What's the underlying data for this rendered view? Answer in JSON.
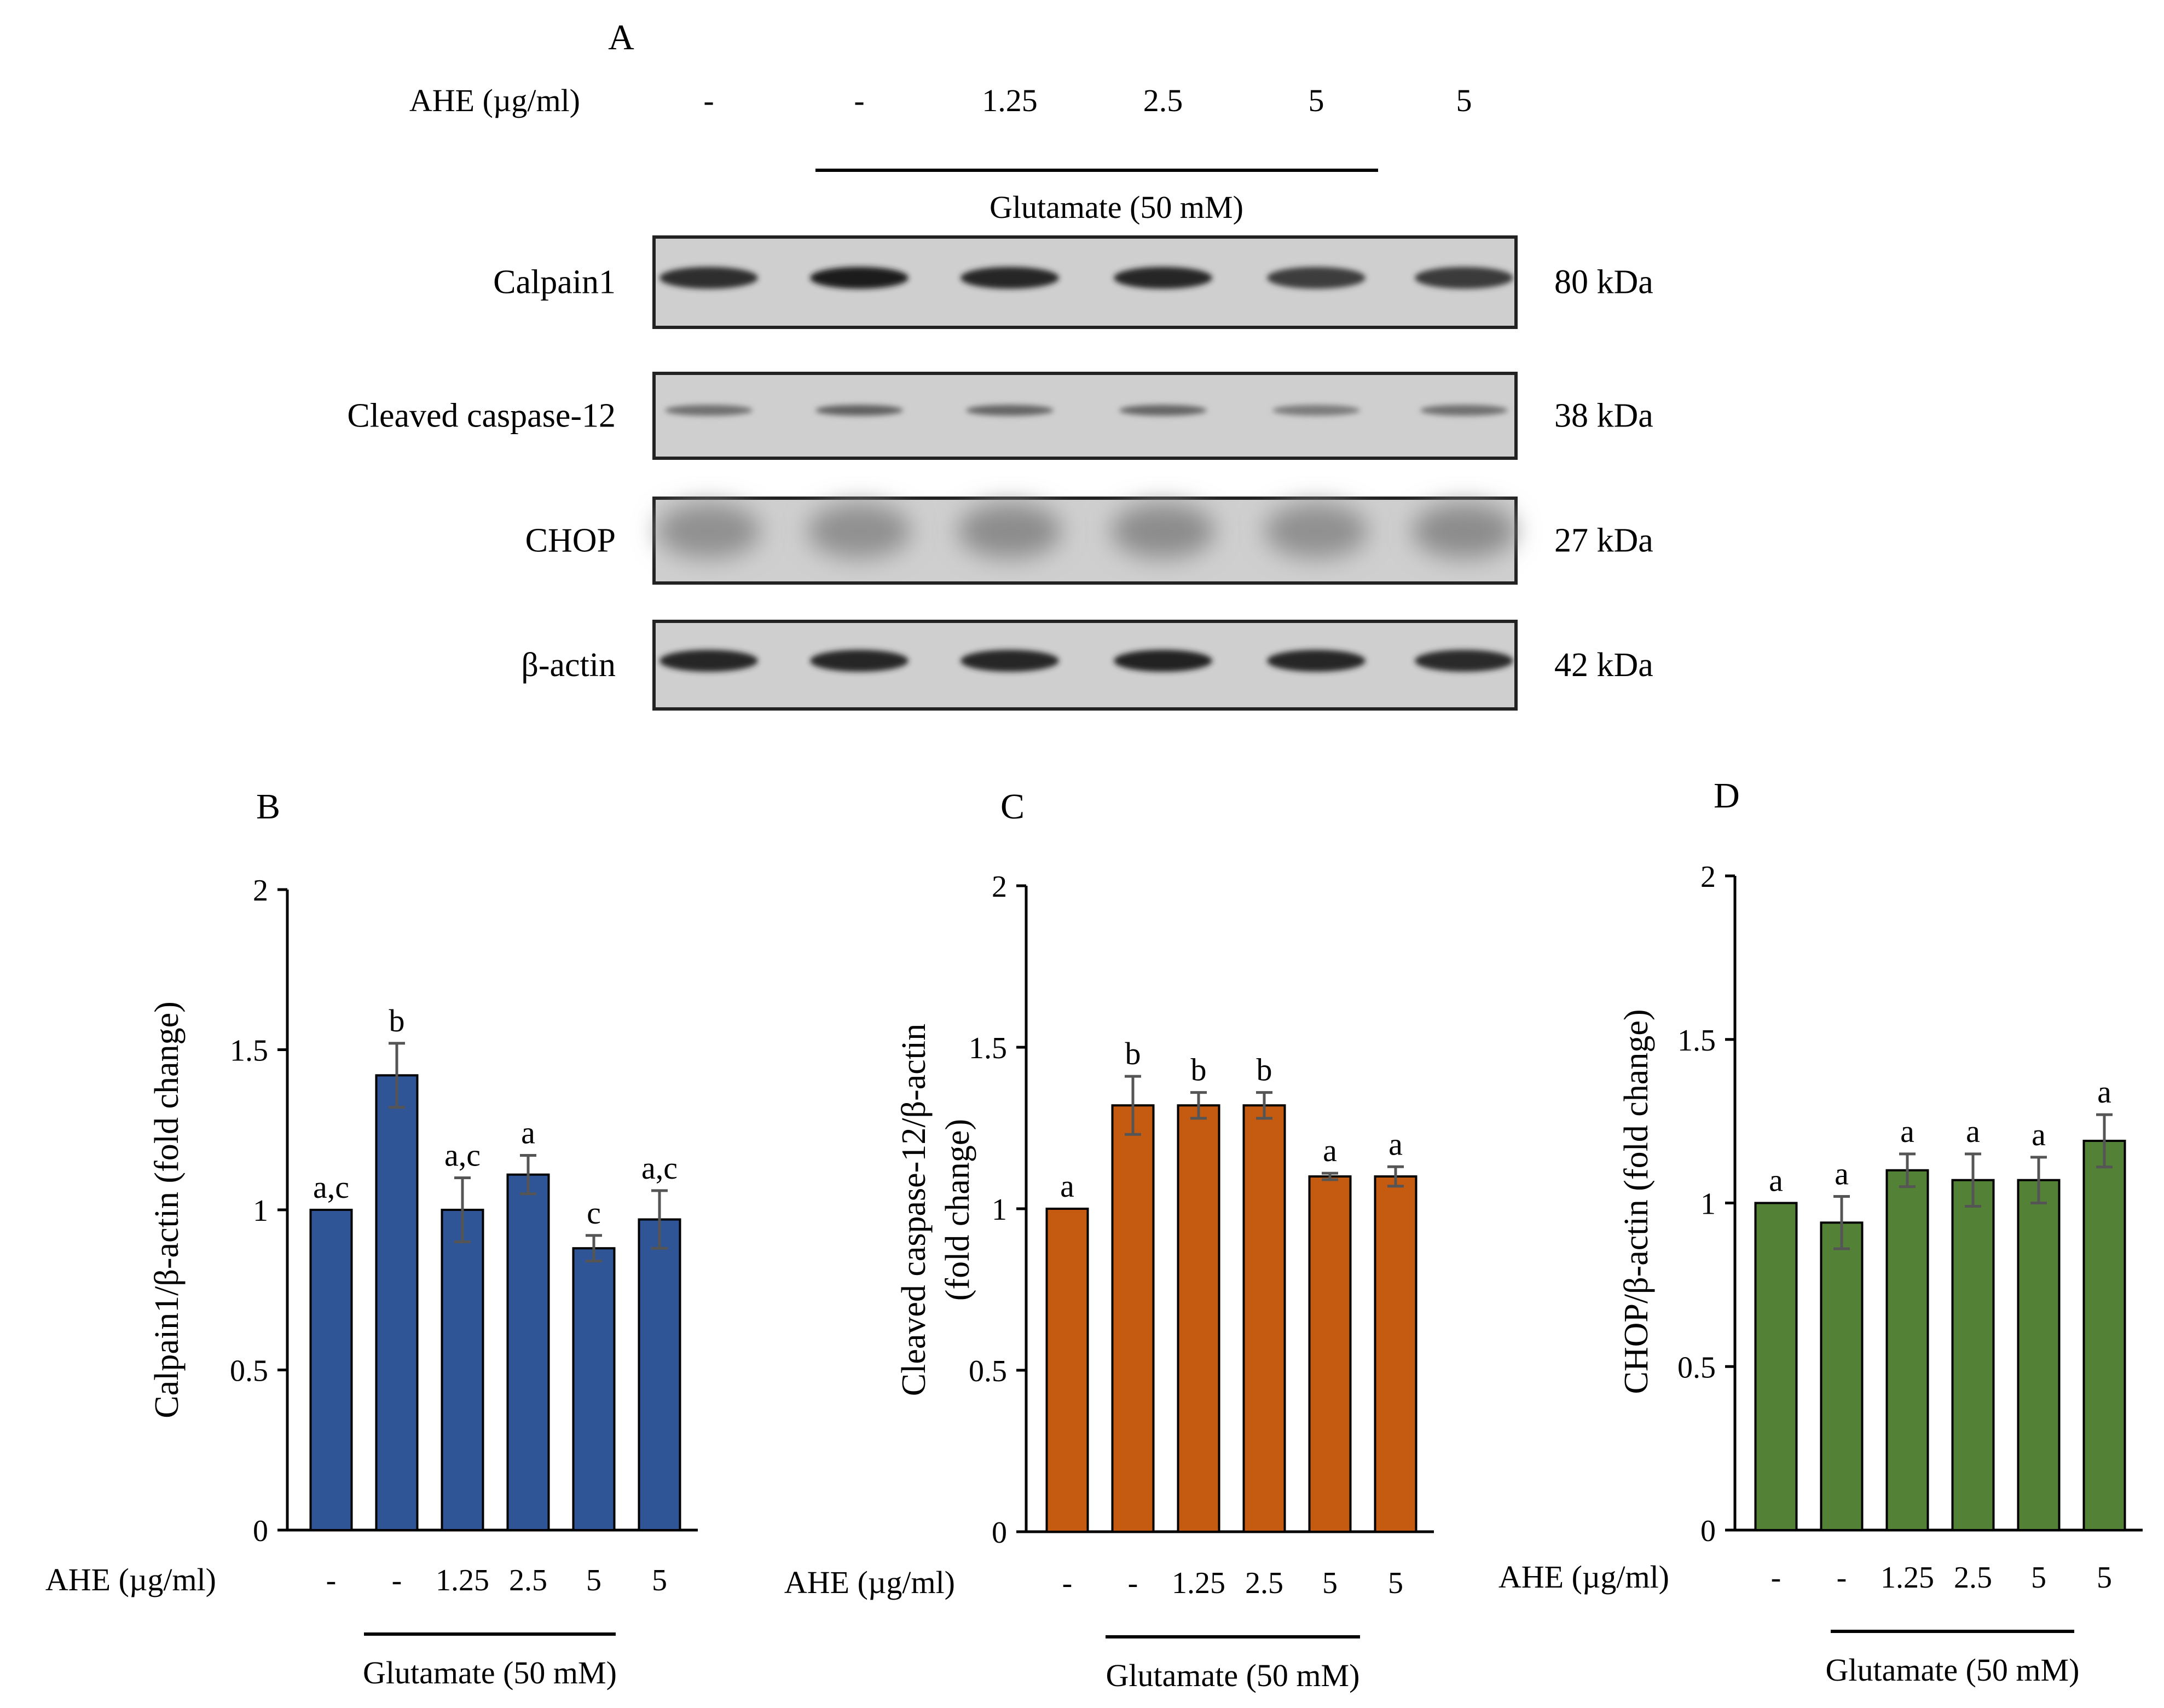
{
  "panel_a": {
    "letter": "A",
    "treatment_label": "AHE (µg/ml)",
    "doses": [
      "-",
      "-",
      "1.25",
      "2.5",
      "5",
      "5"
    ],
    "group_label": "Glutamate (50 mM)",
    "blots": [
      {
        "protein": "Calpain1",
        "size": "80 kDa",
        "band": "sharp",
        "intensity": [
          0.85,
          0.95,
          0.9,
          0.9,
          0.78,
          0.8
        ]
      },
      {
        "protein": "Cleaved caspase-12",
        "size": "38 kDa",
        "band": "thin",
        "intensity": [
          0.55,
          0.62,
          0.6,
          0.6,
          0.5,
          0.55
        ]
      },
      {
        "protein": "CHOP",
        "size": "27 kDa",
        "band": "diffuse",
        "intensity": [
          0.4,
          0.4,
          0.42,
          0.42,
          0.4,
          0.42
        ]
      },
      {
        "protein": "β-actin",
        "size": "42 kDa",
        "band": "sharp",
        "intensity": [
          0.9,
          0.9,
          0.9,
          0.92,
          0.9,
          0.88
        ]
      }
    ]
  },
  "chart_data": [
    {
      "type": "bar",
      "panel": "B",
      "ylabel": "Calpain1/β-actin (fold change)",
      "categories": [
        "-",
        "-",
        "1.25",
        "2.5",
        "5",
        "5"
      ],
      "values": [
        1.0,
        1.42,
        1.0,
        1.11,
        0.88,
        0.97
      ],
      "errors": [
        0.0,
        0.1,
        0.1,
        0.06,
        0.04,
        0.09
      ],
      "significance": [
        "a,c",
        "b",
        "a,c",
        "a",
        "c",
        "a,c"
      ],
      "ylim": [
        0,
        2
      ],
      "yticks": [
        "0",
        "0.5",
        "1",
        "1.5",
        "2"
      ],
      "xlabel_prefix": "AHE (µg/ml)",
      "group_label": "Glutamate (50 mM)",
      "color": "#2f5597"
    },
    {
      "type": "bar",
      "panel": "C",
      "ylabel": [
        "Cleaved caspase-12/β-actin",
        "(fold change)"
      ],
      "categories": [
        "-",
        "-",
        "1.25",
        "2.5",
        "5",
        "5"
      ],
      "values": [
        1.0,
        1.32,
        1.32,
        1.32,
        1.1,
        1.1
      ],
      "errors": [
        0.0,
        0.09,
        0.04,
        0.04,
        0.01,
        0.03
      ],
      "significance": [
        "a",
        "b",
        "b",
        "b",
        "a",
        "a"
      ],
      "ylim": [
        0,
        2
      ],
      "yticks": [
        "0",
        "0.5",
        "1",
        "1.5",
        "2"
      ],
      "xlabel_prefix": "AHE (µg/ml)",
      "group_label": "Glutamate (50 mM)",
      "color": "#c55a11"
    },
    {
      "type": "bar",
      "panel": "D",
      "ylabel": "CHOP/β-actin (fold change)",
      "categories": [
        "-",
        "-",
        "1.25",
        "2.5",
        "5",
        "5"
      ],
      "values": [
        1.0,
        0.94,
        1.1,
        1.07,
        1.07,
        1.19
      ],
      "errors": [
        0.0,
        0.08,
        0.05,
        0.08,
        0.07,
        0.08
      ],
      "significance": [
        "a",
        "a",
        "a",
        "a",
        "a",
        "a"
      ],
      "ylim": [
        0,
        2
      ],
      "yticks": [
        "0",
        "0.5",
        "1",
        "1.5",
        "2"
      ],
      "xlabel_prefix": "AHE (µg/ml)",
      "group_label": "Glutamate (50 mM)",
      "color": "#538135"
    }
  ]
}
